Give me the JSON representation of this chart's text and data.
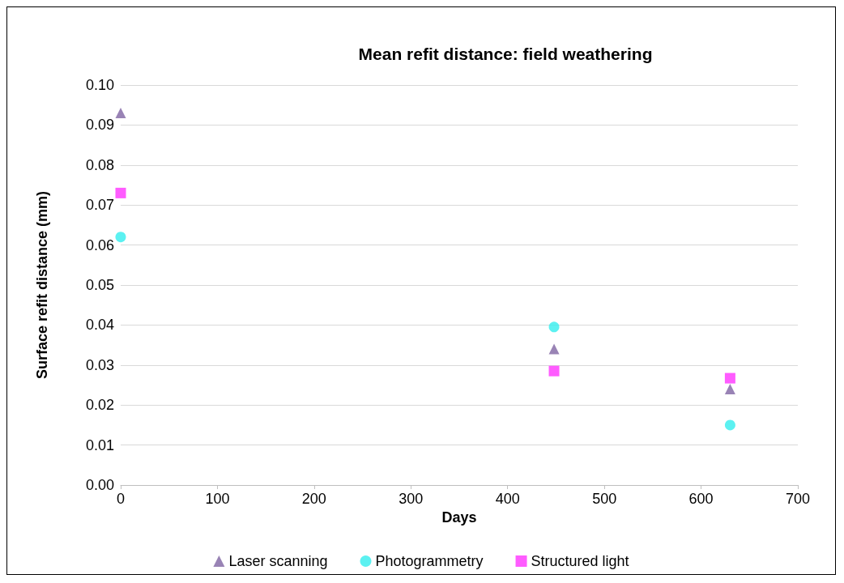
{
  "chart_data": {
    "type": "scatter",
    "title": "Mean refit distance: field weathering",
    "xlabel": "Days",
    "ylabel": "Surface refit distance (mm)",
    "xlim": [
      0,
      700
    ],
    "xticks": [
      0,
      100,
      200,
      300,
      400,
      500,
      600,
      700
    ],
    "ylim": [
      0,
      0.1
    ],
    "yticks": [
      {
        "value": 0,
        "label": "0.00"
      },
      0.01,
      0.02,
      0.03,
      0.04,
      0.05,
      0.06,
      0.07,
      0.08,
      0.09,
      {
        "value": 0.1,
        "label": "0.10"
      }
    ],
    "grid": "y",
    "legend": "bottom",
    "series": [
      {
        "name": "Laser scanning",
        "color": "#8064a2",
        "marker": "triangle",
        "x": [
          0,
          448,
          630
        ],
        "values": [
          0.093,
          0.034,
          0.024
        ]
      },
      {
        "name": "Photogrammetry",
        "color": "#33eeee",
        "marker": "circle",
        "x": [
          0,
          448,
          630
        ],
        "values": [
          0.062,
          0.0395,
          0.015
        ]
      },
      {
        "name": "Structured light",
        "color": "#ff33ff",
        "marker": "square",
        "x": [
          0,
          448,
          630
        ],
        "values": [
          0.073,
          0.0285,
          0.0267
        ]
      }
    ]
  }
}
